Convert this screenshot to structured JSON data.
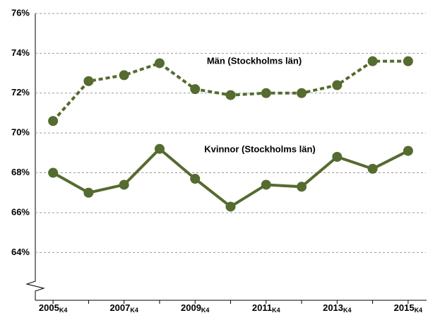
{
  "chart_data": {
    "type": "line",
    "categories": [
      "2005K4",
      null,
      "2007K4",
      null,
      "2009K4",
      null,
      "2011K4",
      null,
      "2013K4",
      null,
      "2015K4"
    ],
    "series": [
      {
        "name": "Män (Stockholms län)",
        "color": "#556b2f",
        "dashed": true,
        "values": [
          70.6,
          72.6,
          72.9,
          73.5,
          72.2,
          71.9,
          72.0,
          72.0,
          72.4,
          73.6,
          73.6
        ]
      },
      {
        "name": "Kvinnor (Stockholms län)",
        "color": "#556b2f",
        "dashed": false,
        "values": [
          68.0,
          67.0,
          67.4,
          69.2,
          67.7,
          66.3,
          67.4,
          67.3,
          68.8,
          68.2,
          69.1
        ]
      }
    ],
    "ylim": [
      61.6,
      76
    ],
    "yticks": [
      {
        "value": 64,
        "label": "64%"
      },
      {
        "value": 66,
        "label": "66%"
      },
      {
        "value": 68,
        "label": "68%"
      },
      {
        "value": 70,
        "label": "70%"
      },
      {
        "value": 72,
        "label": "72%"
      },
      {
        "value": 74,
        "label": "74%"
      },
      {
        "value": 76,
        "label": "76%"
      }
    ],
    "grid": true
  }
}
